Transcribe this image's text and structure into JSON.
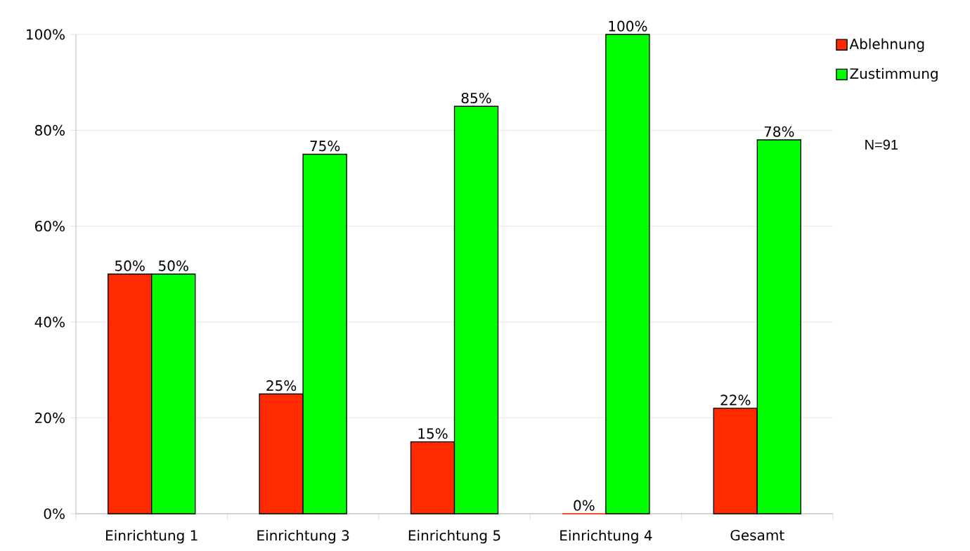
{
  "chart_data": {
    "type": "bar",
    "categories": [
      "Einrichtung 1",
      "Einrichtung 3",
      "Einrichtung 5",
      "Einrichtung 4",
      "Gesamt"
    ],
    "series": [
      {
        "name": "Ablehnung",
        "color": "#ff2a00",
        "values": [
          50,
          25,
          15,
          0,
          22
        ],
        "value_labels": [
          "50%",
          "25%",
          "15%",
          "0%",
          "22%"
        ]
      },
      {
        "name": "Zustimmung",
        "color": "#00ff00",
        "values": [
          50,
          75,
          85,
          100,
          78
        ],
        "value_labels": [
          "50%",
          "75%",
          "85%",
          "100%",
          "78%"
        ]
      }
    ],
    "ylim": [
      0,
      100
    ],
    "yticks": [
      {
        "value": 0,
        "label": "0%"
      },
      {
        "value": 20,
        "label": "20%"
      },
      {
        "value": 40,
        "label": "40%"
      },
      {
        "value": 60,
        "label": "60%"
      },
      {
        "value": 80,
        "label": "80%"
      },
      {
        "value": 100,
        "label": "100%"
      }
    ],
    "grid": "y",
    "legend": "top right",
    "annotations": [
      "N=91"
    ]
  }
}
